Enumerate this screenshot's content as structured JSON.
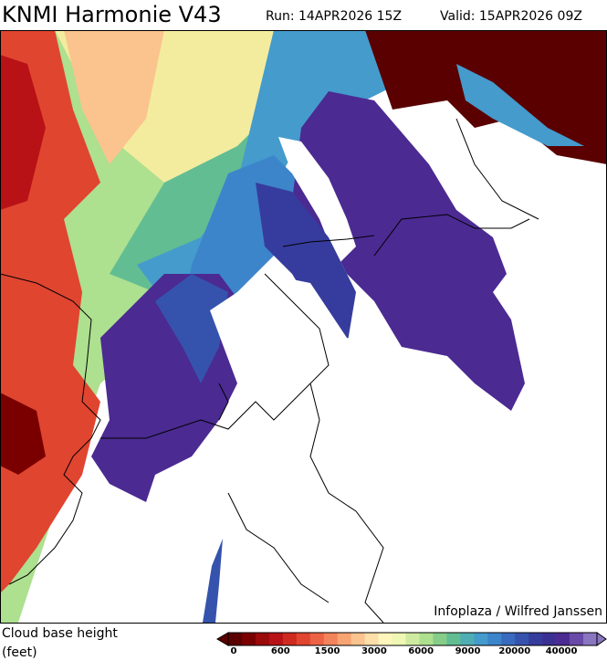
{
  "header": {
    "title": "KNMI Harmonie V43",
    "run": "Run: 14APR2026 15Z",
    "valid": "Valid: 15APR2026 09Z"
  },
  "map": {
    "credit": "Infoplaza / Wilfred Janssen"
  },
  "legend": {
    "label_line1": "Cloud base height",
    "label_line2": "(feet)",
    "ticks": [
      "0",
      "600",
      "1500",
      "3000",
      "6000",
      "9000",
      "20000",
      "40000"
    ],
    "colors": [
      "#5a0000",
      "#7a0000",
      "#9b0a0a",
      "#b81216",
      "#cf2a1f",
      "#e04530",
      "#ec6244",
      "#f3835a",
      "#f7a473",
      "#fbc38e",
      "#fde0a9",
      "#fff6bd",
      "#eef7b4",
      "#cfeba1",
      "#ade08f",
      "#85cd88",
      "#62bd93",
      "#4faeb3",
      "#449bcc",
      "#3d85cb",
      "#386bbf",
      "#3553ad",
      "#363c9d",
      "#3c2f93",
      "#4b2a92",
      "#6a4aa8",
      "#8a76c0"
    ]
  }
}
